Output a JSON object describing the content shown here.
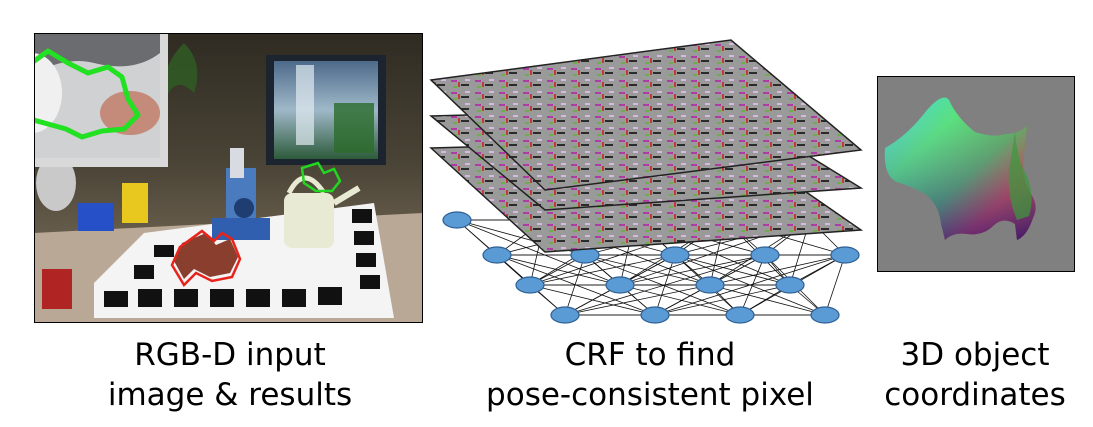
{
  "panels": [
    {
      "id": "rgbd",
      "caption_lines": [
        "RGB-D input",
        "image & results"
      ]
    },
    {
      "id": "crf",
      "caption_lines": [
        "CRF to find",
        "pose-consistent pixel"
      ]
    },
    {
      "id": "coords",
      "caption_lines": [
        "3D object",
        "coordinates"
      ]
    }
  ],
  "colors": {
    "contour_found": "#22d622",
    "contour_red": "#e8231c",
    "node_fill": "#5b9bd5",
    "node_stroke": "#2e5f93",
    "layer_fill": "#9a9a9a",
    "coords_bg": "#808080"
  }
}
